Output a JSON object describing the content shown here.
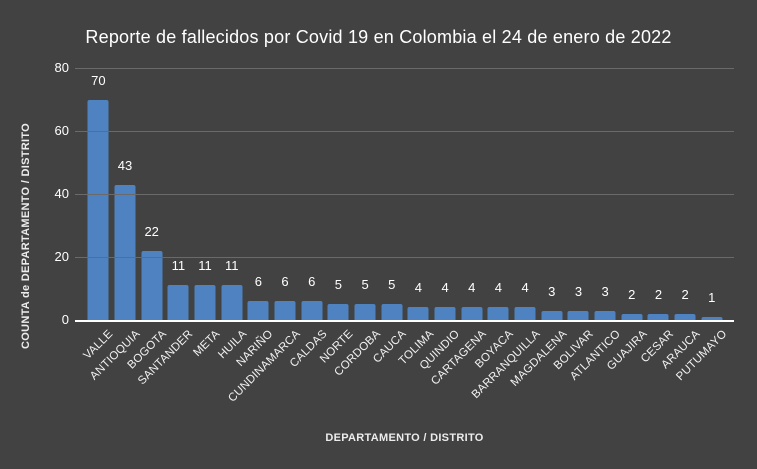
{
  "title": "Reporte de fallecidos por Covid 19 en Colombia el 24 de enero de 2022",
  "chart_data": {
    "type": "bar",
    "title": "Reporte de fallecidos por Covid 19 en Colombia el 24 de enero de 2022",
    "xlabel": "DEPARTAMENTO / DISTRITO",
    "ylabel": "COUNTA de DEPARTAMENTO / DISTRITO",
    "categories": [
      "VALLE",
      "ANTIOQUIA",
      "BOGOTA",
      "SANTANDER",
      "META",
      "HUILA",
      "NARIÑO",
      "CUNDINAMARCA",
      "CALDAS",
      "NORTE",
      "CORDOBA",
      "CAUCA",
      "TOLIMA",
      "QUINDIO",
      "CARTAGENA",
      "BOYACA",
      "BARRANQUILLA",
      "MAGDALENA",
      "BOLIVAR",
      "ATLANTICO",
      "GUAJIRA",
      "CESAR",
      "ARAUCA",
      "PUTUMAYO"
    ],
    "values": [
      70,
      43,
      22,
      11,
      11,
      11,
      6,
      6,
      6,
      5,
      5,
      5,
      4,
      4,
      4,
      4,
      4,
      3,
      3,
      3,
      2,
      2,
      2,
      1
    ],
    "data_labels_shown": true,
    "ylim": [
      0,
      80
    ],
    "yticks": [
      0,
      20,
      40,
      60,
      80
    ],
    "grid": true,
    "legend_position": "none",
    "colors": {
      "bar": "#4f82c0",
      "background": "#424242",
      "gridline": "#6a6a6a",
      "axis_line": "#ffffff",
      "text": "#ffffff"
    }
  }
}
